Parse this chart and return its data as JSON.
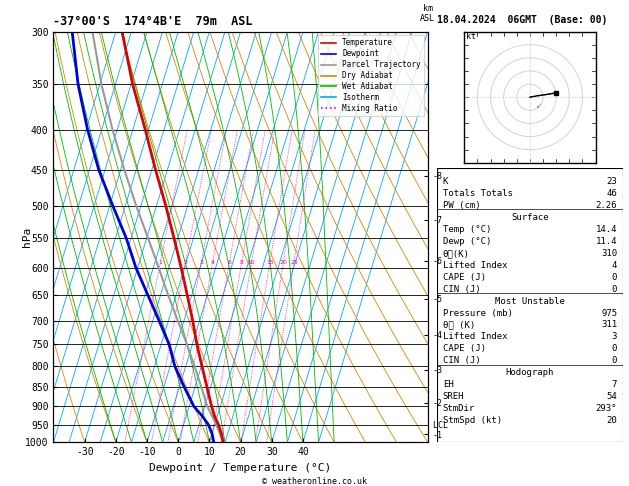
{
  "title_left": "-37°00'S  174°4B'E  79m  ASL",
  "title_right": "18.04.2024  06GMT  (Base: 00)",
  "xlabel": "Dewpoint / Temperature (°C)",
  "ylabel_left": "hPa",
  "pressure_levels": [
    300,
    350,
    400,
    450,
    500,
    550,
    600,
    650,
    700,
    750,
    800,
    850,
    900,
    950,
    1000
  ],
  "temp_ticks": [
    -30,
    -20,
    -10,
    0,
    10,
    20,
    30,
    40
  ],
  "km_ticks": [
    8,
    7,
    6,
    5,
    4,
    3,
    2,
    1
  ],
  "km_pressures": [
    458,
    521,
    587,
    657,
    730,
    808,
    890,
    977
  ],
  "lcl_pressure": 952,
  "mixing_ratio_values": [
    1,
    2,
    3,
    4,
    6,
    8,
    10,
    15,
    20,
    25
  ],
  "temp_profile": {
    "pressure": [
      1000,
      975,
      950,
      925,
      900,
      850,
      800,
      750,
      700,
      650,
      600,
      550,
      500,
      450,
      400,
      350,
      300
    ],
    "temp": [
      14.4,
      13.0,
      11.2,
      9.0,
      7.2,
      3.8,
      0.2,
      -3.6,
      -7.2,
      -11.4,
      -16.0,
      -21.2,
      -27.0,
      -33.8,
      -41.0,
      -49.5,
      -58.0
    ]
  },
  "dewpoint_profile": {
    "pressure": [
      1000,
      975,
      950,
      925,
      900,
      850,
      800,
      750,
      700,
      650,
      600,
      550,
      500,
      450,
      400,
      350,
      300
    ],
    "temp": [
      11.4,
      10.0,
      8.0,
      5.0,
      1.5,
      -3.5,
      -8.5,
      -12.5,
      -18.0,
      -24.0,
      -30.5,
      -36.5,
      -44.0,
      -52.0,
      -59.5,
      -67.0,
      -74.0
    ]
  },
  "parcel_profile": {
    "pressure": [
      1000,
      975,
      950,
      925,
      900,
      850,
      800,
      750,
      700,
      650,
      600,
      550,
      500,
      450,
      400,
      350,
      300
    ],
    "temp": [
      14.4,
      12.5,
      10.5,
      8.2,
      5.8,
      2.0,
      -2.2,
      -6.8,
      -12.0,
      -17.5,
      -23.2,
      -29.5,
      -36.5,
      -43.8,
      -51.5,
      -59.5,
      -67.5
    ]
  },
  "isotherm_color": "#00aaff",
  "dry_adiabat_color": "#dd8800",
  "wet_adiabat_color": "#00bb00",
  "mixing_ratio_color": "#ee00aa",
  "temp_color": "#dd0000",
  "dewpoint_color": "#0000dd",
  "parcel_color": "#999999",
  "SKEW": 40,
  "P_MIN": 300,
  "P_MAX": 1000,
  "T_MIN": -40,
  "T_MAX": 40,
  "info_panel": {
    "K": 23,
    "Totals Totals": 46,
    "PW (cm)": "2.26",
    "Surface_Temp": "14.4",
    "Surface_Dewp": "11.4",
    "Surface_theta_e": 310,
    "Surface_LI": 4,
    "Surface_CAPE": 0,
    "Surface_CIN": 0,
    "MU_Pressure": 975,
    "MU_theta_e": 311,
    "MU_LI": 3,
    "MU_CAPE": 0,
    "MU_CIN": 0,
    "Hodo_EH": 7,
    "Hodo_SREH": 54,
    "Hodo_StmDir": "293°",
    "Hodo_StmSpd": 20
  }
}
